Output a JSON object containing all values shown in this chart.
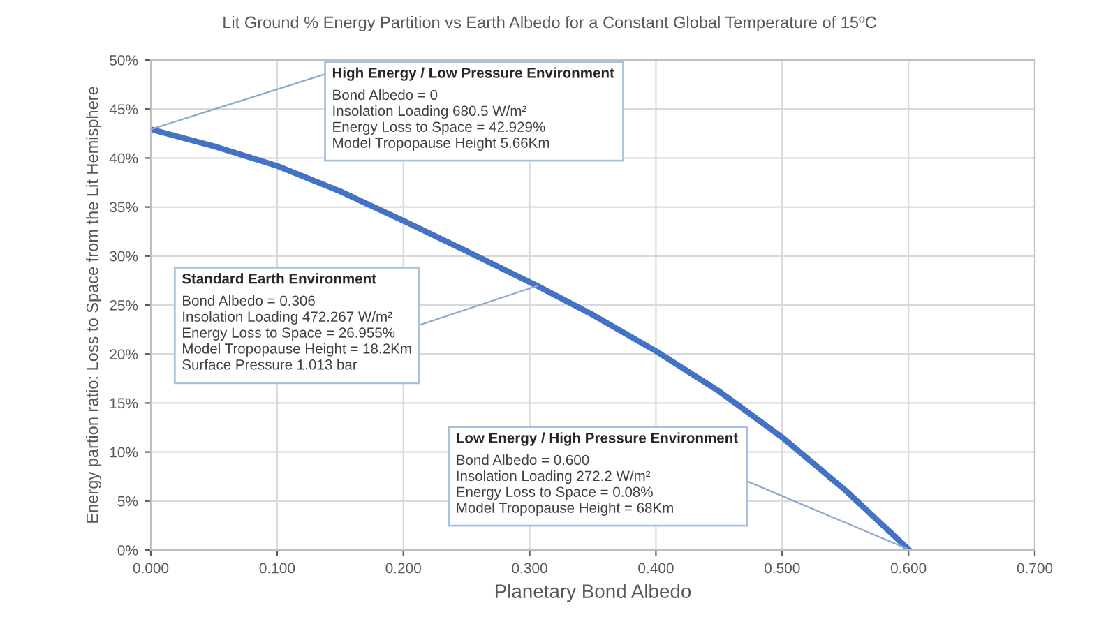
{
  "chart_data": {
    "type": "line",
    "title": "Lit Ground % Energy Partition vs Earth Albedo for a Constant Global Temperature of 15ºC",
    "xlabel": "Planetary Bond Albedo",
    "ylabel": "Energy partion ratio: Loss to Space from the Lit Hemisphere",
    "x": [
      0,
      0.05,
      0.1,
      0.15,
      0.2,
      0.25,
      0.306,
      0.35,
      0.4,
      0.45,
      0.5,
      0.55,
      0.6
    ],
    "series": [
      {
        "color": "#4472c4",
        "values": [
          42.929,
          41.2,
          39.2,
          36.6,
          33.6,
          30.5,
          26.955,
          24.0,
          20.3,
          16.2,
          11.5,
          6.1,
          0.08
        ]
      }
    ],
    "xlim": [
      0,
      0.7
    ],
    "ylim": [
      0,
      50
    ],
    "xticks": [
      {
        "value": 0,
        "label": "0.000"
      },
      {
        "value": 0.1,
        "label": "0.100"
      },
      {
        "value": 0.2,
        "label": "0.200"
      },
      {
        "value": 0.3,
        "label": "0.300"
      },
      {
        "value": 0.4,
        "label": "0.400"
      },
      {
        "value": 0.5,
        "label": "0.500"
      },
      {
        "value": 0.6,
        "label": "0.600"
      },
      {
        "value": 0.7,
        "label": "0.700"
      }
    ],
    "yticks": [
      {
        "value": 0,
        "label": "0%"
      },
      {
        "value": 5,
        "label": "5%"
      },
      {
        "value": 10,
        "label": "10%"
      },
      {
        "value": 15,
        "label": "15%"
      },
      {
        "value": 20,
        "label": "20%"
      },
      {
        "value": 25,
        "label": "25%"
      },
      {
        "value": 30,
        "label": "30%"
      },
      {
        "value": 35,
        "label": "35%"
      },
      {
        "value": 40,
        "label": "40%"
      },
      {
        "value": 45,
        "label": "45%"
      },
      {
        "value": 50,
        "label": "50%"
      }
    ],
    "grid": true,
    "marker": "none",
    "line_style": "solid",
    "legend": false,
    "annotations": [
      {
        "text": "High Energy / Low Pressure Environment\nBond Albedo = 0\nInsolation Loading 680.5 W/m²\nEnergy Loss to Space = 42.929%\nModel Tropopause Height 5.66Km",
        "x": 0,
        "y": 42.929
      },
      {
        "text": "Standard Earth Environment\nBond Albedo = 0.306\nInsolation Loading 472.267 W/m²\nEnergy Loss to Space = 26.955%\nModel Tropopause Height = 18.2Km\nSurface Pressure 1.013 bar",
        "x": 0.306,
        "y": 26.955
      },
      {
        "text": "Low Energy / High Pressure Environment\nBond Albedo = 0.600\nInsolation Loading 272.2 W/m²\nEnergy Loss to Space = 0.08%\nModel Tropopause Height = 68Km",
        "x": 0.6,
        "y": 0.08
      }
    ]
  }
}
